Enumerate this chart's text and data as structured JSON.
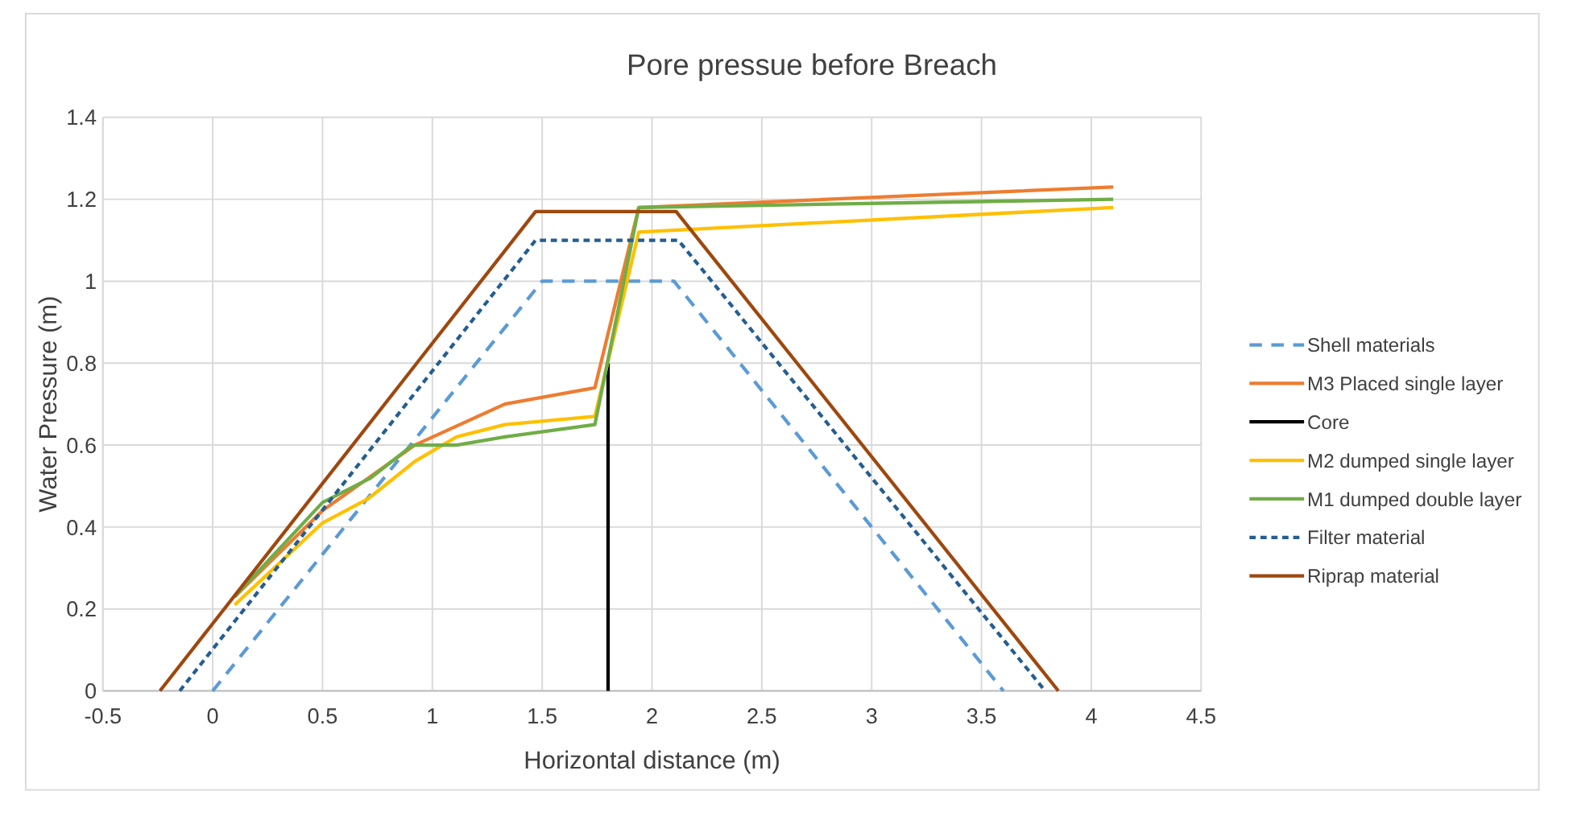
{
  "chart_data": {
    "type": "line",
    "title": "Pore pressue before Breach",
    "xlabel": "Horizontal distance (m)",
    "ylabel": "Water Pressure (m)",
    "xlim": [
      -0.5,
      4.5
    ],
    "xticks": [
      -0.5,
      0,
      0.5,
      1,
      1.5,
      2,
      2.5,
      3,
      3.5,
      4,
      4.5
    ],
    "ylim": [
      0,
      1.4
    ],
    "yticks": [
      0,
      0.2,
      0.4,
      0.6,
      0.8,
      1,
      1.2,
      1.4
    ],
    "grid": true,
    "legend": "right",
    "marker": "none",
    "series": [
      {
        "name": "Shell materials",
        "color": "#5b9bd5",
        "line_style": "dashed",
        "x": [
          0,
          1.5,
          2.1,
          3.6
        ],
        "values": [
          0,
          1,
          1,
          0
        ]
      },
      {
        "name": "M3 Placed single layer",
        "color": "#ed7d31",
        "line_style": "solid",
        "x": [
          0.1,
          0.5,
          0.92,
          1.33,
          1.74,
          1.94,
          4.1
        ],
        "values": [
          0.23,
          0.44,
          0.6,
          0.7,
          0.74,
          1.18,
          1.23
        ]
      },
      {
        "name": "Core",
        "color": "#000000",
        "line_style": "solid",
        "x": [
          1.8,
          1.8
        ],
        "values": [
          0,
          0.8
        ]
      },
      {
        "name": "M2 dumped single layer",
        "color": "#ffc000",
        "line_style": "solid",
        "x": [
          0.1,
          0.5,
          0.71,
          0.92,
          1.11,
          1.33,
          1.74,
          1.94,
          4.1
        ],
        "values": [
          0.21,
          0.41,
          0.47,
          0.56,
          0.62,
          0.65,
          0.67,
          1.12,
          1.18
        ]
      },
      {
        "name": "M1 dumped double layer",
        "color": "#70ad47",
        "line_style": "solid",
        "x": [
          0.1,
          0.5,
          0.72,
          0.91,
          1.11,
          1.33,
          1.74,
          1.94,
          4.1
        ],
        "values": [
          0.23,
          0.46,
          0.52,
          0.6,
          0.6,
          0.62,
          0.65,
          1.18,
          1.2
        ]
      },
      {
        "name": "Filter material",
        "color": "#255e91",
        "line_style": "dotted",
        "x": [
          -0.15,
          1.47,
          2.12,
          3.79
        ],
        "values": [
          0,
          1.1,
          1.1,
          0
        ]
      },
      {
        "name": "Riprap material",
        "color": "#9e480e",
        "line_style": "solid",
        "x": [
          -0.24,
          1.47,
          2.11,
          3.85
        ],
        "values": [
          0,
          1.17,
          1.17,
          0
        ]
      }
    ]
  }
}
